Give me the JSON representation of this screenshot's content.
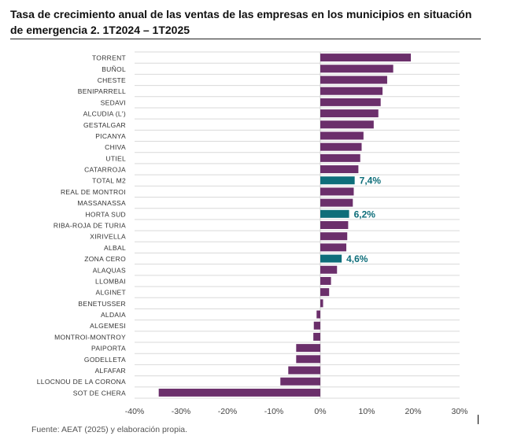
{
  "title": "Tasa de crecimiento anual de las ventas de las empresas en los municipios en situación de emergencia 2. 1T2024 – 1T2025",
  "source": "Fuente: AEAT (2025) y elaboración propia.",
  "colors": {
    "default_bar": "#6b2f6b",
    "highlight_bar": "#0e6e7a",
    "highlight_label": "#0e6e7a",
    "grid": "#d9d9d9"
  },
  "chart_data": {
    "type": "bar",
    "orientation": "horizontal",
    "title": "Tasa de crecimiento anual de las ventas de las empresas en los municipios en situación de emergencia 2. 1T2024 – 1T2025",
    "xlabel": "",
    "ylabel": "",
    "xlim": [
      -40,
      30
    ],
    "xticks": [
      -40,
      -30,
      -20,
      -10,
      0,
      10,
      20,
      30
    ],
    "xtick_labels": [
      "-40%",
      "-30%",
      "-20%",
      "-10%",
      "0%",
      "10%",
      "20%",
      "30%"
    ],
    "grid": true,
    "categories": [
      "TORRENT",
      "BUÑOL",
      "CHESTE",
      "BENIPARRELL",
      "SEDAVI",
      "ALCUDIA (L')",
      "GESTALGAR",
      "PICANYA",
      "CHIVA",
      "UTIEL",
      "CATARROJA",
      "TOTAL M2",
      "REAL DE MONTROI",
      "MASSANASSA",
      "HORTA SUD",
      "RIBA-ROJA DE TURIA",
      "XIRIVELLA",
      "ALBAL",
      "ZONA CERO",
      "ALAQUAS",
      "LLOMBAI",
      "ALGINET",
      "BENETUSSER",
      "ALDAIA",
      "ALGEMESI",
      "MONTROI-MONTROY",
      "PAIPORTA",
      "GODELLETA",
      "ALFAFAR",
      "LLOCNOU DE LA CORONA",
      "SOT DE CHERA"
    ],
    "values": [
      19.5,
      15.7,
      14.4,
      13.4,
      13.0,
      12.5,
      11.5,
      9.3,
      8.9,
      8.6,
      8.2,
      7.4,
      7.2,
      7.0,
      6.2,
      6.0,
      5.8,
      5.6,
      4.6,
      3.6,
      2.3,
      1.9,
      0.6,
      -0.8,
      -1.4,
      -1.5,
      -5.2,
      -5.2,
      -6.9,
      -8.6,
      -34.8
    ],
    "highlighted": [
      "TOTAL M2",
      "HORTA SUD",
      "ZONA CERO"
    ],
    "data_labels": {
      "TOTAL M2": "7,4%",
      "HORTA SUD": "6,2%",
      "ZONA CERO": "4,6%"
    }
  }
}
